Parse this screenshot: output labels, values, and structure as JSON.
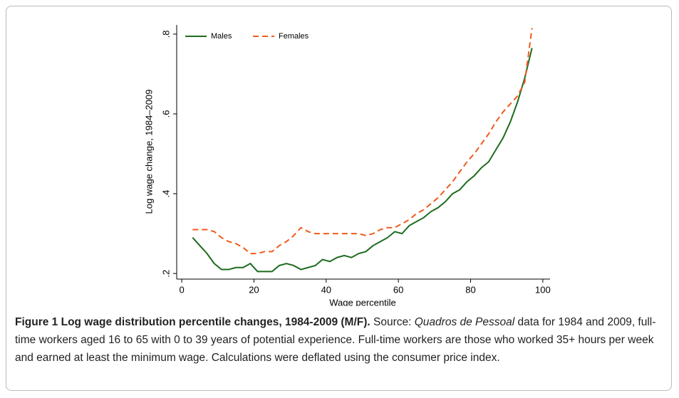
{
  "chart_data": {
    "type": "line",
    "x_label": "Wage percentile",
    "y_label": "Log wage change, 1984–2009",
    "x": [
      3,
      5,
      7,
      9,
      11,
      13,
      15,
      17,
      19,
      21,
      23,
      25,
      27,
      29,
      31,
      33,
      35,
      37,
      39,
      41,
      43,
      45,
      47,
      49,
      51,
      53,
      55,
      57,
      59,
      61,
      63,
      65,
      67,
      69,
      71,
      73,
      75,
      77,
      79,
      81,
      83,
      85,
      87,
      89,
      91,
      93,
      95,
      97
    ],
    "series": [
      {
        "name": "Males",
        "color": "#1e6b1e",
        "dash": "solid",
        "values": [
          0.29,
          0.27,
          0.25,
          0.225,
          0.21,
          0.21,
          0.215,
          0.215,
          0.225,
          0.205,
          0.205,
          0.205,
          0.22,
          0.225,
          0.22,
          0.21,
          0.215,
          0.22,
          0.235,
          0.23,
          0.24,
          0.245,
          0.24,
          0.25,
          0.255,
          0.27,
          0.28,
          0.29,
          0.305,
          0.3,
          0.32,
          0.33,
          0.34,
          0.355,
          0.365,
          0.38,
          0.4,
          0.41,
          0.43,
          0.445,
          0.465,
          0.48,
          0.51,
          0.54,
          0.58,
          0.63,
          0.69,
          0.765
        ]
      },
      {
        "name": "Females",
        "color": "#f05a1e",
        "dash": "dashed",
        "values": [
          0.31,
          0.31,
          0.31,
          0.305,
          0.29,
          0.28,
          0.275,
          0.265,
          0.25,
          0.25,
          0.255,
          0.255,
          0.27,
          0.28,
          0.295,
          0.315,
          0.305,
          0.3,
          0.3,
          0.3,
          0.3,
          0.3,
          0.3,
          0.3,
          0.295,
          0.3,
          0.31,
          0.315,
          0.315,
          0.325,
          0.335,
          0.35,
          0.36,
          0.375,
          0.39,
          0.41,
          0.43,
          0.455,
          0.48,
          0.5,
          0.525,
          0.55,
          0.58,
          0.605,
          0.625,
          0.645,
          0.68,
          0.815
        ]
      }
    ],
    "xlim": [
      -1.4,
      102
    ],
    "ylim": [
      0.186,
      0.823
    ],
    "xticks": [
      0,
      20,
      40,
      60,
      80,
      100
    ],
    "yticks": [
      {
        "value": 0.2,
        "label": ".2"
      },
      {
        "value": 0.4,
        "label": ".4"
      },
      {
        "value": 0.6,
        "label": ".6"
      },
      {
        "value": 0.8,
        "label": ".8"
      }
    ],
    "legend": "top-left"
  },
  "caption": {
    "label": "Figure 1 Log wage distribution percentile changes, 1984-2009 (M/F).",
    "source_prefix": "Source:",
    "source_name": "Quadros de Pessoal",
    "text": "data for 1984 and 2009, full-time workers aged 16 to 65 with 0 to 39 years of potential experience. Full-time workers are those who worked 35+ hours per week and earned at least the minimum wage. Calculations were deflated using the consumer price index."
  }
}
